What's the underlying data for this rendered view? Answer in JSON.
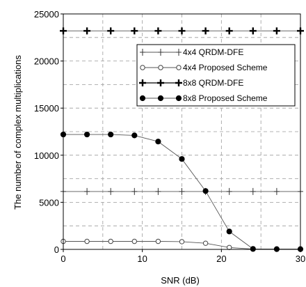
{
  "chart_data": {
    "type": "line",
    "title": "",
    "xlabel": "SNR (dB)",
    "ylabel": "The number of complex multiplications",
    "xlim": [
      0,
      30
    ],
    "ylim": [
      0,
      25000
    ],
    "xticks": [
      0,
      10,
      20,
      30
    ],
    "xtick_labels": [
      "0",
      "10",
      "20",
      "30"
    ],
    "yticks": [
      0,
      5000,
      10000,
      15000,
      20000,
      25000
    ],
    "ytick_labels": [
      "0",
      "5000",
      "10000",
      "15000",
      "20000",
      "25000"
    ],
    "grid": true,
    "legend_position": "upper-right",
    "x": [
      0,
      3,
      6,
      9,
      12,
      15,
      18,
      21,
      24,
      27,
      30
    ],
    "series": [
      {
        "name": "4x4 QRDM-DFE",
        "marker": "plus-thin",
        "values": [
          6150,
          6150,
          6150,
          6150,
          6150,
          6150,
          6150,
          6150,
          6150,
          6150,
          6150
        ]
      },
      {
        "name": "4x4 Proposed Scheme",
        "marker": "circle-open",
        "values": [
          850,
          850,
          850,
          850,
          850,
          820,
          650,
          200,
          30,
          20,
          20
        ]
      },
      {
        "name": "8x8 QRDM-DFE",
        "marker": "plus-bold",
        "values": [
          23200,
          23200,
          23200,
          23200,
          23200,
          23200,
          23200,
          23200,
          23200,
          23200,
          23200
        ]
      },
      {
        "name": "8x8 Proposed Scheme",
        "marker": "circle-filled",
        "values": [
          12200,
          12200,
          12200,
          12100,
          11450,
          9600,
          6200,
          1900,
          50,
          30,
          30
        ]
      }
    ]
  }
}
